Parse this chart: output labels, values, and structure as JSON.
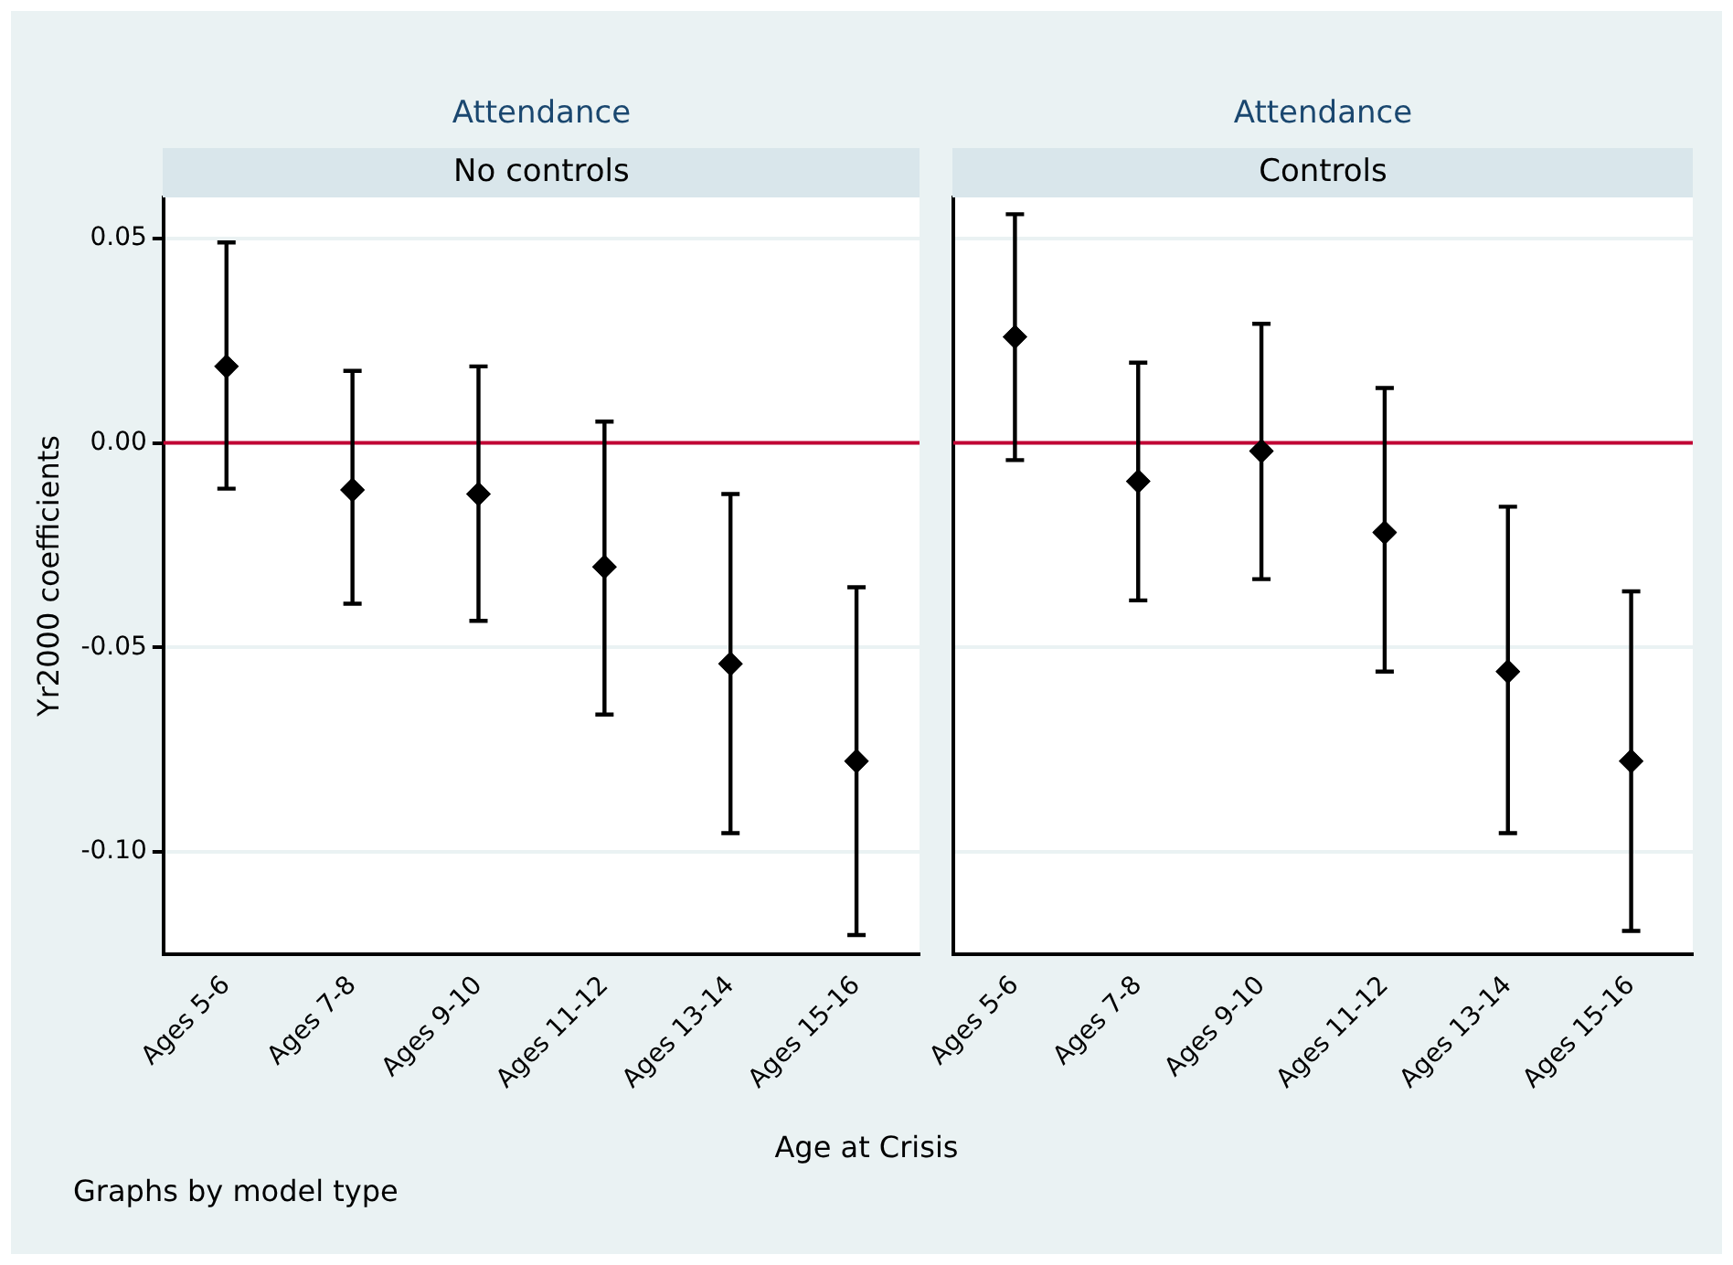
{
  "chart_data": [
    {
      "type": "scatter",
      "title": "Attendance",
      "subtitle": "No controls",
      "ylabel": "Yr2000 coefficients",
      "xlabel": "Age at Crisis",
      "annotations": [
        "Graphs by model type"
      ],
      "categories": [
        "Ages 5-6",
        "Ages 7-8",
        "Ages 9-10",
        "Ages 11-12",
        "Ages 13-14",
        "Ages 15-16"
      ],
      "series": [
        {
          "color": "#000000",
          "values": [
            0.0187,
            -0.0115,
            -0.0125,
            -0.0303,
            -0.054,
            -0.0778
          ],
          "errors": [
            [
              -0.0112,
              0.049
            ],
            [
              -0.0393,
              0.0176
            ],
            [
              -0.0435,
              0.0187
            ],
            [
              -0.0664,
              0.0052
            ],
            [
              -0.0954,
              -0.0125
            ],
            [
              -0.1203,
              -0.0353
            ]
          ]
        }
      ],
      "ylim": [
        -0.125,
        0.06
      ],
      "yticks": [
        {
          "value": -0.1,
          "label": "-0.10"
        },
        {
          "value": -0.05,
          "label": "-0.05"
        },
        {
          "value": 0,
          "label": "0.00"
        },
        {
          "value": 0.05,
          "label": "0.05"
        }
      ],
      "ref_lines": [
        {
          "axis": "y",
          "value": 0,
          "color": "#c10534"
        }
      ],
      "grid": "y",
      "marker": "diamond",
      "legend": false
    },
    {
      "type": "scatter",
      "title": "Attendance",
      "subtitle": "Controls",
      "categories": [
        "Ages 5-6",
        "Ages 7-8",
        "Ages 9-10",
        "Ages 11-12",
        "Ages 13-14",
        "Ages 15-16"
      ],
      "series": [
        {
          "color": "#000000",
          "values": [
            0.0259,
            -0.0094,
            -0.002,
            -0.0219,
            -0.0559,
            -0.0778
          ],
          "errors": [
            [
              -0.0042,
              0.0559
            ],
            [
              -0.0385,
              0.0196
            ],
            [
              -0.0333,
              0.0291
            ],
            [
              -0.0559,
              0.0134
            ],
            [
              -0.0954,
              -0.0156
            ],
            [
              -0.1193,
              -0.0363
            ]
          ]
        }
      ],
      "ylim": [
        -0.125,
        0.06
      ],
      "yticks": [
        {
          "value": -0.1,
          "label": null
        },
        {
          "value": -0.05,
          "label": null
        },
        {
          "value": 0,
          "label": null
        },
        {
          "value": 0.05,
          "label": null
        }
      ],
      "ref_lines": [
        {
          "axis": "y",
          "value": 0,
          "color": "#c10534"
        }
      ],
      "grid": "y",
      "marker": "diamond",
      "legend": false,
      "tick_labels": "x"
    }
  ]
}
